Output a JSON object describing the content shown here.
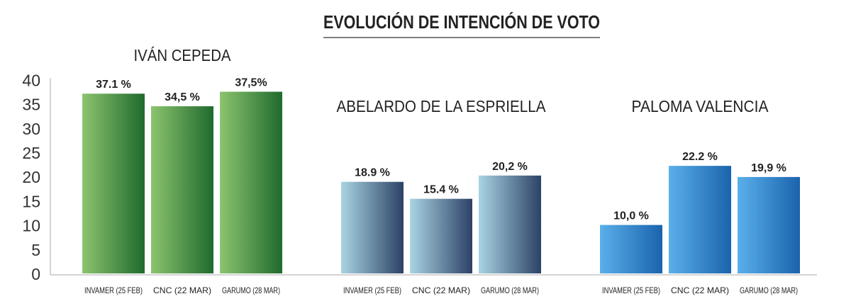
{
  "title": "EVOLUCIÓN DE INTENCIÓN DE VOTO",
  "chart_data": {
    "type": "bar",
    "title": "EVOLUCIÓN DE INTENCIÓN DE VOTO",
    "ylim": [
      0,
      40
    ],
    "yticks": [
      0,
      5,
      10,
      15,
      20,
      25,
      30,
      35,
      40
    ],
    "categories": [
      "INVAMER (25 FEB)",
      "CNC (22 MAR)",
      "GARUMO (28 MAR)"
    ],
    "grid": false,
    "groups": [
      {
        "name": "IVÁN CEPEDA",
        "values": [
          37.1,
          34.5,
          37.5
        ],
        "labels": [
          "37.1 %",
          "34,5 %",
          "37,5%"
        ],
        "colors": [
          "#8cc46e",
          "#1f6a2e"
        ]
      },
      {
        "name": "ABELARDO DE LA ESPRIELLA",
        "values": [
          18.9,
          15.4,
          20.2
        ],
        "labels": [
          "18.9 %",
          "15.4 %",
          "20,2 %"
        ],
        "colors": [
          "#a9d4e3",
          "#2c4266"
        ]
      },
      {
        "name": "PALOMA VALENCIA",
        "values": [
          10.0,
          22.2,
          19.9
        ],
        "labels": [
          "10,0 %",
          "22.2 %",
          "19,9 %"
        ],
        "colors": [
          "#5ab0ea",
          "#1a63ad"
        ]
      }
    ]
  }
}
